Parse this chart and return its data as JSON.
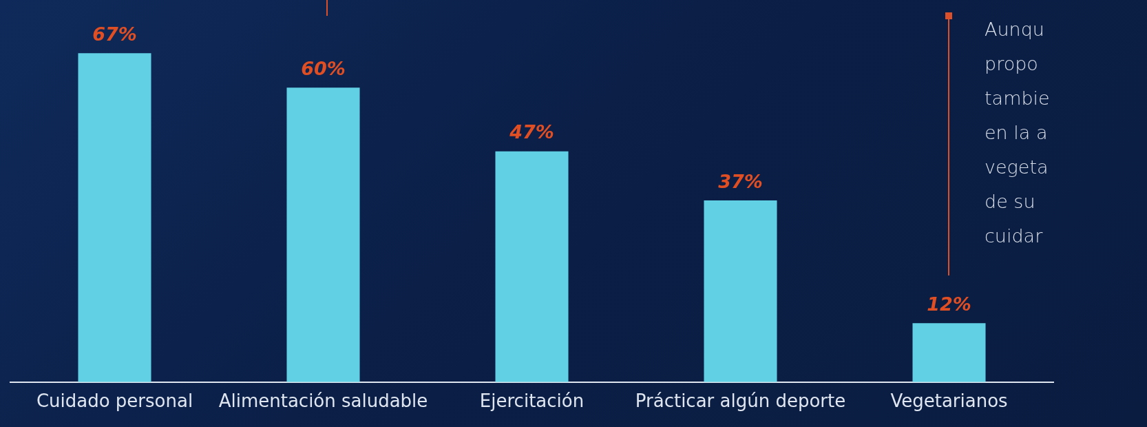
{
  "chart_data": {
    "type": "bar",
    "categories": [
      "Cuidado personal",
      "Alimentación saludable",
      "Ejercitación",
      "Prácticar algún deporte",
      "Vegetarianos"
    ],
    "values": [
      67,
      60,
      47,
      37,
      12
    ],
    "value_labels": [
      "67%",
      "60%",
      "47%",
      "37%",
      "12%"
    ],
    "color": "#62d0e4",
    "grid": false,
    "legend": false,
    "annotations": [
      "Aunqu",
      "propo",
      "tambie",
      "en la a",
      "vegeta",
      "de su",
      "cuidar"
    ]
  }
}
